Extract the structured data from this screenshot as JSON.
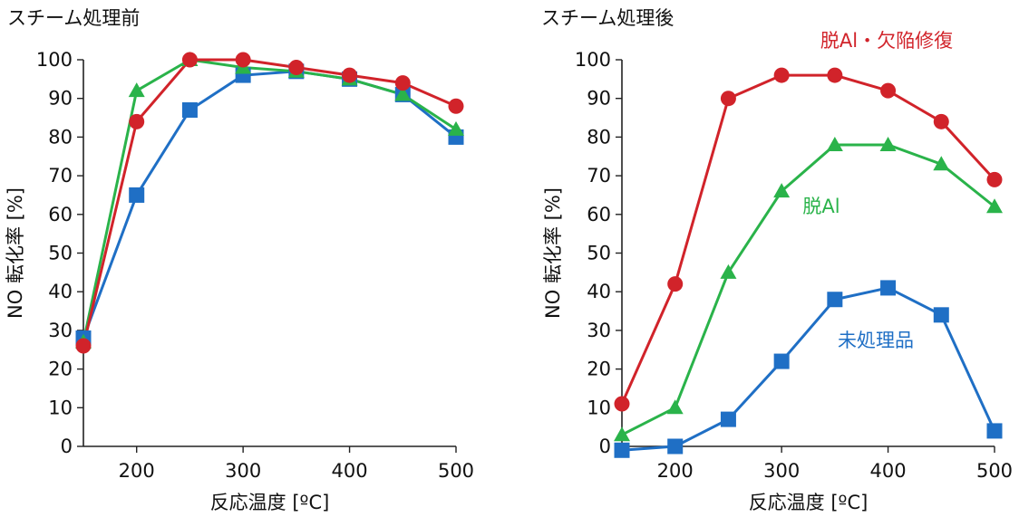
{
  "chart_data": [
    {
      "type": "line",
      "title": "スチーム処理前",
      "xlabel": "反応温度 [ºC]",
      "ylabel": "NO 転化率 [%]",
      "xlim": [
        150,
        500
      ],
      "ylim": [
        0,
        100
      ],
      "xticks": [
        200,
        300,
        400,
        500
      ],
      "yticks": [
        0,
        10,
        20,
        30,
        40,
        50,
        60,
        70,
        80,
        90,
        100
      ],
      "x": [
        150,
        200,
        250,
        300,
        350,
        400,
        450,
        500
      ],
      "series": [
        {
          "name": "未処理品",
          "color": "#1f6fc5",
          "marker": "square",
          "values": [
            28,
            65,
            87,
            96,
            97,
            95,
            91,
            80
          ]
        },
        {
          "name": "脱Al",
          "color": "#2ab34a",
          "marker": "triangle",
          "values": [
            27,
            92,
            100,
            98,
            97,
            95,
            91,
            82
          ]
        },
        {
          "name": "脱Al・欠陥修復",
          "color": "#d1232a",
          "marker": "circle",
          "values": [
            26,
            84,
            100,
            100,
            98,
            96,
            94,
            88
          ]
        }
      ],
      "annotations": []
    },
    {
      "type": "line",
      "title": "スチーム処理後",
      "xlabel": "反応温度 [ºC]",
      "ylabel": "NO 転化率 [%]",
      "xlim": [
        150,
        500
      ],
      "ylim": [
        0,
        100
      ],
      "xticks": [
        200,
        300,
        400,
        500
      ],
      "yticks": [
        0,
        10,
        20,
        30,
        40,
        50,
        60,
        70,
        80,
        90,
        100
      ],
      "x": [
        150,
        200,
        250,
        300,
        350,
        400,
        450,
        500
      ],
      "series": [
        {
          "name": "未処理品",
          "color": "#1f6fc5",
          "marker": "square",
          "values": [
            -1,
            0,
            7,
            22,
            38,
            41,
            34,
            4
          ]
        },
        {
          "name": "脱Al",
          "color": "#2ab34a",
          "marker": "triangle",
          "values": [
            3,
            10,
            45,
            66,
            78,
            78,
            73,
            62
          ]
        },
        {
          "name": "脱Al・欠陥修復",
          "color": "#d1232a",
          "marker": "circle",
          "values": [
            11,
            42,
            90,
            96,
            96,
            92,
            84,
            69
          ]
        }
      ],
      "annotations": [
        {
          "text": "脱Al・欠陥修復",
          "series": 2
        },
        {
          "text": "脱Al",
          "series": 1
        },
        {
          "text": "未処理品",
          "series": 0
        }
      ]
    }
  ]
}
